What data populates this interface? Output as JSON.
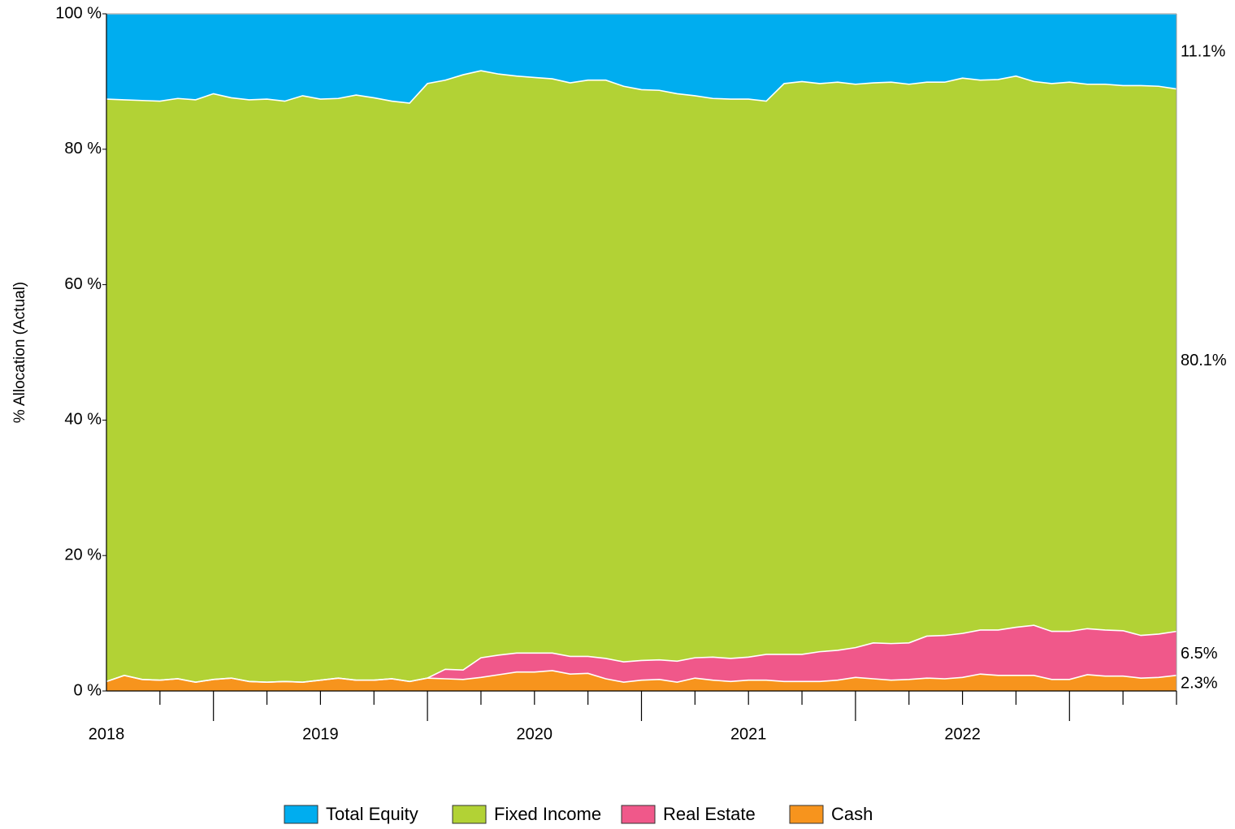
{
  "chart_data": {
    "type": "stacked_area",
    "y_label": "% Allocation (Actual)",
    "categories": [
      "2018",
      null,
      null,
      null,
      null,
      null,
      null,
      null,
      null,
      null,
      null,
      null,
      "2019",
      null,
      null,
      null,
      null,
      null,
      null,
      null,
      null,
      null,
      null,
      null,
      "2020",
      null,
      null,
      null,
      null,
      null,
      null,
      null,
      null,
      null,
      null,
      null,
      "2021",
      null,
      null,
      null,
      null,
      null,
      null,
      null,
      null,
      null,
      null,
      null,
      "2022",
      null,
      null,
      null,
      null,
      null,
      null,
      null,
      null,
      null,
      null,
      null,
      null
    ],
    "ylim": [
      0,
      100
    ],
    "yticks": [
      {
        "value": 0,
        "label": "0 %"
      },
      {
        "value": 20,
        "label": "20 %"
      },
      {
        "value": 40,
        "label": "40 %"
      },
      {
        "value": 60,
        "label": "60 %"
      },
      {
        "value": 80,
        "label": "80 %"
      },
      {
        "value": 100,
        "label": "100 %"
      }
    ],
    "series": [
      {
        "name": "Total Equity",
        "color": "#00adef",
        "values": [
          12.6,
          12.7,
          12.8,
          12.9,
          12.5,
          12.7,
          11.8,
          12.4,
          12.7,
          12.6,
          12.9,
          12.1,
          12.6,
          12.5,
          12.0,
          12.4,
          12.9,
          13.2,
          10.3,
          9.8,
          9.0,
          8.4,
          8.9,
          9.2,
          9.4,
          9.6,
          10.2,
          9.8,
          9.8,
          10.7,
          11.2,
          11.3,
          11.8,
          12.1,
          12.5,
          12.6,
          12.6,
          12.9,
          10.3,
          10.0,
          10.3,
          10.1,
          10.4,
          10.2,
          10.1,
          10.4,
          10.1,
          10.1,
          9.5,
          9.8,
          9.7,
          9.2,
          10.0,
          10.3,
          10.1,
          10.4,
          10.4,
          10.6,
          10.6,
          10.7,
          11.1
        ],
        "value_labels": [
          null,
          null,
          null,
          null,
          null,
          null,
          null,
          null,
          null,
          null,
          null,
          null,
          null,
          null,
          null,
          null,
          null,
          null,
          null,
          null,
          null,
          null,
          null,
          null,
          null,
          null,
          null,
          null,
          null,
          null,
          null,
          null,
          null,
          null,
          null,
          null,
          null,
          null,
          null,
          null,
          null,
          null,
          null,
          null,
          null,
          null,
          null,
          null,
          null,
          null,
          null,
          null,
          null,
          null,
          null,
          null,
          null,
          null,
          null,
          null,
          "11.1%"
        ]
      },
      {
        "name": "Fixed Income",
        "color": "#b2d235",
        "values": [
          86.0,
          85.0,
          85.5,
          85.5,
          85.7,
          86.0,
          86.5,
          85.7,
          85.9,
          86.1,
          85.7,
          86.6,
          85.8,
          85.6,
          86.4,
          86.0,
          85.3,
          85.4,
          87.8,
          87.0,
          87.9,
          86.7,
          85.8,
          85.2,
          85.0,
          84.8,
          84.7,
          85.1,
          85.4,
          85.0,
          84.3,
          84.1,
          83.8,
          83.0,
          82.5,
          82.6,
          82.4,
          81.7,
          84.3,
          84.6,
          83.9,
          83.9,
          83.2,
          82.7,
          82.9,
          82.5,
          81.8,
          81.7,
          82.0,
          81.2,
          81.3,
          81.4,
          80.3,
          80.9,
          81.1,
          80.4,
          80.6,
          80.5,
          81.2,
          80.9,
          80.1
        ],
        "value_labels": [
          null,
          null,
          null,
          null,
          null,
          null,
          null,
          null,
          null,
          null,
          null,
          null,
          null,
          null,
          null,
          null,
          null,
          null,
          null,
          null,
          null,
          null,
          null,
          null,
          null,
          null,
          null,
          null,
          null,
          null,
          null,
          null,
          null,
          null,
          null,
          null,
          null,
          null,
          null,
          null,
          null,
          null,
          null,
          null,
          null,
          null,
          null,
          null,
          null,
          null,
          null,
          null,
          null,
          null,
          null,
          null,
          null,
          null,
          null,
          null,
          "80.1%"
        ]
      },
      {
        "name": "Real Estate",
        "color": "#f0588a",
        "values": [
          0,
          0,
          0,
          0,
          0,
          0,
          0,
          0,
          0,
          0,
          0,
          0,
          0,
          0,
          0,
          0,
          0,
          0,
          0,
          1.4,
          1.4,
          2.9,
          2.9,
          2.8,
          2.8,
          2.6,
          2.6,
          2.5,
          3.0,
          3.0,
          2.9,
          2.9,
          3.1,
          3.0,
          3.4,
          3.4,
          3.4,
          3.8,
          4.0,
          4.0,
          4.4,
          4.4,
          4.4,
          5.3,
          5.4,
          5.4,
          6.2,
          6.4,
          6.5,
          6.5,
          6.7,
          7.1,
          7.4,
          7.1,
          7.1,
          6.8,
          6.8,
          6.7,
          6.3,
          6.4,
          6.5
        ],
        "value_labels": [
          null,
          null,
          null,
          null,
          null,
          null,
          null,
          null,
          null,
          null,
          null,
          null,
          null,
          null,
          null,
          null,
          null,
          null,
          null,
          null,
          null,
          null,
          null,
          null,
          null,
          null,
          null,
          null,
          null,
          null,
          null,
          null,
          null,
          null,
          null,
          null,
          null,
          null,
          null,
          null,
          null,
          null,
          null,
          null,
          null,
          null,
          null,
          null,
          null,
          null,
          null,
          null,
          null,
          null,
          null,
          null,
          null,
          null,
          null,
          null,
          "6.5%"
        ]
      },
      {
        "name": "Cash",
        "color": "#f7941d",
        "values": [
          1.4,
          2.3,
          1.7,
          1.6,
          1.8,
          1.3,
          1.7,
          1.9,
          1.4,
          1.3,
          1.4,
          1.3,
          1.6,
          1.9,
          1.6,
          1.6,
          1.8,
          1.4,
          1.9,
          1.8,
          1.7,
          2.0,
          2.4,
          2.8,
          2.8,
          3.0,
          2.5,
          2.6,
          1.8,
          1.3,
          1.6,
          1.7,
          1.3,
          1.9,
          1.6,
          1.4,
          1.6,
          1.6,
          1.4,
          1.4,
          1.4,
          1.6,
          2.0,
          1.8,
          1.6,
          1.7,
          1.9,
          1.8,
          2.0,
          2.5,
          2.3,
          2.3,
          2.3,
          1.7,
          1.7,
          2.4,
          2.2,
          2.2,
          1.9,
          2.0,
          2.3
        ],
        "value_labels": [
          null,
          null,
          null,
          null,
          null,
          null,
          null,
          null,
          null,
          null,
          null,
          null,
          null,
          null,
          null,
          null,
          null,
          null,
          null,
          null,
          null,
          null,
          null,
          null,
          null,
          null,
          null,
          null,
          null,
          null,
          null,
          null,
          null,
          null,
          null,
          null,
          null,
          null,
          null,
          null,
          null,
          null,
          null,
          null,
          null,
          null,
          null,
          null,
          null,
          null,
          null,
          null,
          null,
          null,
          null,
          null,
          null,
          null,
          null,
          null,
          "2.3%"
        ]
      }
    ]
  }
}
